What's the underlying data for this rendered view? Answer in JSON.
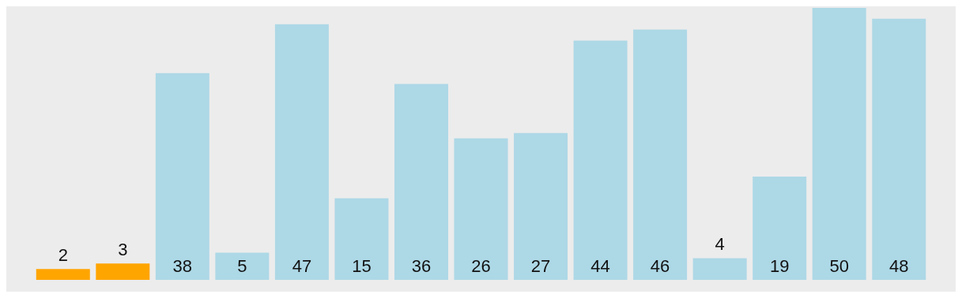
{
  "chart_data": {
    "type": "bar",
    "categories": [
      null,
      null,
      null,
      null,
      null,
      null,
      null,
      null,
      null,
      null,
      null,
      null,
      null,
      null,
      null
    ],
    "values": [
      2,
      3,
      38,
      5,
      47,
      15,
      36,
      26,
      27,
      44,
      46,
      4,
      19,
      50,
      48
    ],
    "colors": [
      "#ffa500",
      "#ffa500",
      "#add8e6",
      "#add8e6",
      "#add8e6",
      "#add8e6",
      "#add8e6",
      "#add8e6",
      "#add8e6",
      "#add8e6",
      "#add8e6",
      "#add8e6",
      "#add8e6",
      "#add8e6",
      "#add8e6"
    ],
    "data_labels": true,
    "grid": false,
    "legend": false
  }
}
